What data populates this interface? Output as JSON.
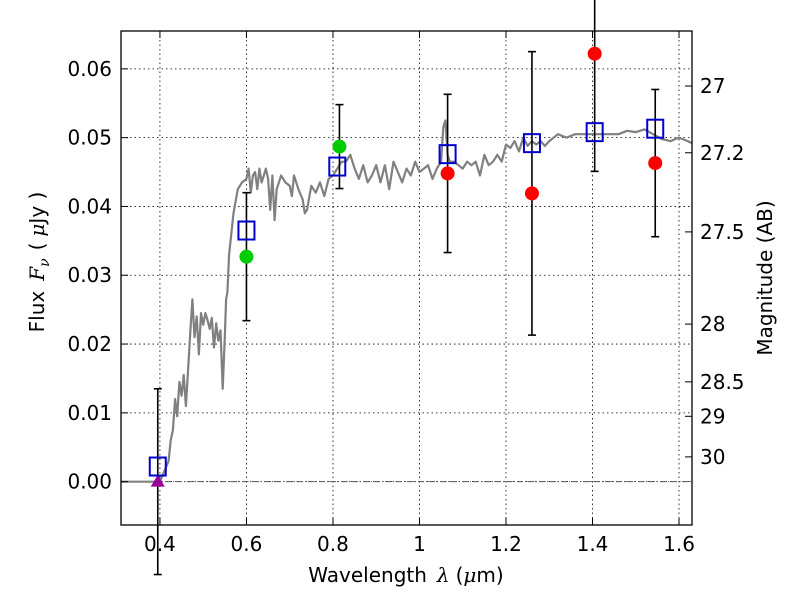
{
  "chart_data": {
    "type": "scatter",
    "xlabel_prefix": "Wavelength",
    "xlabel_symbol": "λ",
    "xlabel_unit_open": "(",
    "xlabel_unit_mu": "μ",
    "xlabel_unit_rest": "m)",
    "ylabel_prefix": "Flux",
    "ylabel_symbol": "F",
    "ylabel_sub": "ν",
    "ylabel_unit_open": "(",
    "ylabel_unit_mu": "μ",
    "ylabel_unit_rest": "Jy )",
    "y2label": "Magnitude (AB)",
    "xlim": [
      0.31,
      1.63
    ],
    "ylim": [
      -0.0063,
      0.0655
    ],
    "xticks": [
      {
        "value": 0.4,
        "label": "0.4"
      },
      {
        "value": 0.6,
        "label": "0.6"
      },
      {
        "value": 0.8,
        "label": "0.8"
      },
      {
        "value": 1.0,
        "label": "1"
      },
      {
        "value": 1.2,
        "label": "1.2"
      },
      {
        "value": 1.4,
        "label": "1.4"
      },
      {
        "value": 1.6,
        "label": "1.6"
      }
    ],
    "yticks": [
      {
        "value": 0.0,
        "label": "0.00"
      },
      {
        "value": 0.01,
        "label": "0.01"
      },
      {
        "value": 0.02,
        "label": "0.02"
      },
      {
        "value": 0.03,
        "label": "0.03"
      },
      {
        "value": 0.04,
        "label": "0.04"
      },
      {
        "value": 0.05,
        "label": "0.05"
      },
      {
        "value": 0.06,
        "label": "0.06"
      }
    ],
    "y2ticks": [
      {
        "flux": 0.0575,
        "label": "27"
      },
      {
        "flux": 0.0478,
        "label": "27.2"
      },
      {
        "flux": 0.0363,
        "label": "27.5"
      },
      {
        "flux": 0.0229,
        "label": "28"
      },
      {
        "flux": 0.0145,
        "label": "28.5"
      },
      {
        "flux": 0.0095,
        "label": "29"
      },
      {
        "flux": 0.0036,
        "label": "30"
      }
    ],
    "grid": true,
    "colors": {
      "model": "#808080",
      "model_points": "#0000cc",
      "observed": "#ff0000",
      "observed_alt": "#00cc00",
      "upper_limit": "#990099",
      "errorbar": "#000000",
      "zero_line": "#555555"
    },
    "series": [
      {
        "name": "model spectrum",
        "kind": "line",
        "points": [
          [
            0.31,
            0.0
          ],
          [
            0.4,
            0.0
          ],
          [
            0.41,
            0.0015
          ],
          [
            0.42,
            0.003
          ],
          [
            0.425,
            0.006
          ],
          [
            0.43,
            0.0075
          ],
          [
            0.435,
            0.012
          ],
          [
            0.44,
            0.0095
          ],
          [
            0.445,
            0.0145
          ],
          [
            0.45,
            0.0125
          ],
          [
            0.455,
            0.0155
          ],
          [
            0.46,
            0.011
          ],
          [
            0.465,
            0.016
          ],
          [
            0.47,
            0.0215
          ],
          [
            0.475,
            0.0265
          ],
          [
            0.48,
            0.021
          ],
          [
            0.485,
            0.024
          ],
          [
            0.49,
            0.0185
          ],
          [
            0.495,
            0.0245
          ],
          [
            0.5,
            0.0228
          ],
          [
            0.505,
            0.0245
          ],
          [
            0.51,
            0.0235
          ],
          [
            0.515,
            0.0222
          ],
          [
            0.52,
            0.0238
          ],
          [
            0.525,
            0.0195
          ],
          [
            0.53,
            0.023
          ],
          [
            0.535,
            0.0205
          ],
          [
            0.54,
            0.022
          ],
          [
            0.545,
            0.0135
          ],
          [
            0.55,
            0.021
          ],
          [
            0.553,
            0.0265
          ],
          [
            0.556,
            0.0275
          ],
          [
            0.56,
            0.033
          ],
          [
            0.57,
            0.039
          ],
          [
            0.58,
            0.0425
          ],
          [
            0.59,
            0.0435
          ],
          [
            0.6,
            0.044
          ],
          [
            0.605,
            0.0455
          ],
          [
            0.61,
            0.042
          ],
          [
            0.615,
            0.0445
          ],
          [
            0.62,
            0.045
          ],
          [
            0.625,
            0.0425
          ],
          [
            0.63,
            0.0455
          ],
          [
            0.635,
            0.0435
          ],
          [
            0.64,
            0.0445
          ],
          [
            0.645,
            0.0455
          ],
          [
            0.65,
            0.044
          ],
          [
            0.655,
            0.0395
          ],
          [
            0.66,
            0.0445
          ],
          [
            0.665,
            0.038
          ],
          [
            0.67,
            0.0425
          ],
          [
            0.68,
            0.0445
          ],
          [
            0.69,
            0.0435
          ],
          [
            0.7,
            0.043
          ],
          [
            0.705,
            0.0415
          ],
          [
            0.71,
            0.0445
          ],
          [
            0.72,
            0.0425
          ],
          [
            0.73,
            0.041
          ],
          [
            0.735,
            0.039
          ],
          [
            0.74,
            0.0395
          ],
          [
            0.75,
            0.043
          ],
          [
            0.76,
            0.042
          ],
          [
            0.77,
            0.0435
          ],
          [
            0.78,
            0.0415
          ],
          [
            0.79,
            0.044
          ],
          [
            0.8,
            0.0445
          ],
          [
            0.81,
            0.0455
          ],
          [
            0.82,
            0.0465
          ],
          [
            0.83,
            0.0465
          ],
          [
            0.84,
            0.0475
          ],
          [
            0.85,
            0.0455
          ],
          [
            0.86,
            0.044
          ],
          [
            0.87,
            0.046
          ],
          [
            0.88,
            0.0435
          ],
          [
            0.89,
            0.0445
          ],
          [
            0.9,
            0.046
          ],
          [
            0.91,
            0.0435
          ],
          [
            0.92,
            0.046
          ],
          [
            0.93,
            0.0425
          ],
          [
            0.94,
            0.0465
          ],
          [
            0.95,
            0.045
          ],
          [
            0.96,
            0.0435
          ],
          [
            0.97,
            0.0455
          ],
          [
            0.98,
            0.0445
          ],
          [
            0.99,
            0.0465
          ],
          [
            1.0,
            0.045
          ],
          [
            1.01,
            0.0455
          ],
          [
            1.02,
            0.046
          ],
          [
            1.03,
            0.044
          ],
          [
            1.04,
            0.0455
          ],
          [
            1.05,
            0.0465
          ],
          [
            1.055,
            0.0515
          ],
          [
            1.06,
            0.0525
          ],
          [
            1.065,
            0.0475
          ],
          [
            1.07,
            0.0465
          ],
          [
            1.08,
            0.0465
          ],
          [
            1.09,
            0.046
          ],
          [
            1.1,
            0.0455
          ],
          [
            1.11,
            0.0465
          ],
          [
            1.12,
            0.046
          ],
          [
            1.13,
            0.0465
          ],
          [
            1.14,
            0.0445
          ],
          [
            1.15,
            0.0475
          ],
          [
            1.16,
            0.046
          ],
          [
            1.17,
            0.0465
          ],
          [
            1.18,
            0.0475
          ],
          [
            1.19,
            0.0465
          ],
          [
            1.2,
            0.049
          ],
          [
            1.21,
            0.0485
          ],
          [
            1.22,
            0.0495
          ],
          [
            1.23,
            0.048
          ],
          [
            1.24,
            0.05
          ],
          [
            1.25,
            0.0488
          ],
          [
            1.26,
            0.0495
          ],
          [
            1.27,
            0.049
          ],
          [
            1.28,
            0.0495
          ],
          [
            1.29,
            0.0488
          ],
          [
            1.3,
            0.0495
          ],
          [
            1.32,
            0.0505
          ],
          [
            1.34,
            0.05
          ],
          [
            1.36,
            0.0505
          ],
          [
            1.38,
            0.0505
          ],
          [
            1.4,
            0.0505
          ],
          [
            1.42,
            0.0505
          ],
          [
            1.44,
            0.0505
          ],
          [
            1.46,
            0.0505
          ],
          [
            1.48,
            0.051
          ],
          [
            1.5,
            0.0508
          ],
          [
            1.52,
            0.0512
          ],
          [
            1.54,
            0.0505
          ],
          [
            1.56,
            0.0498
          ],
          [
            1.58,
            0.0495
          ],
          [
            1.6,
            0.05
          ],
          [
            1.62,
            0.0495
          ],
          [
            1.63,
            0.0492
          ]
        ]
      },
      {
        "name": "model band flux",
        "kind": "square",
        "points": [
          [
            0.395,
            0.0022
          ],
          [
            0.6,
            0.0365
          ],
          [
            0.81,
            0.0458
          ],
          [
            1.065,
            0.0476
          ],
          [
            1.26,
            0.0492
          ],
          [
            1.405,
            0.0508
          ],
          [
            1.545,
            0.0513
          ]
        ]
      },
      {
        "name": "observed flux",
        "kind": "circle",
        "points": [
          {
            "x": 0.6,
            "y": 0.0327,
            "err": 0.0093,
            "color": "#00cc00"
          },
          {
            "x": 0.815,
            "y": 0.0487,
            "err": 0.0061,
            "color": "#00cc00"
          },
          {
            "x": 1.065,
            "y": 0.0448,
            "err": 0.0115,
            "color": "#ff0000"
          },
          {
            "x": 1.26,
            "y": 0.0419,
            "err": 0.0206,
            "color": "#ff0000"
          },
          {
            "x": 1.405,
            "y": 0.0622,
            "err": 0.0171,
            "color": "#ff0000"
          },
          {
            "x": 1.545,
            "y": 0.0463,
            "err": 0.0107,
            "color": "#ff0000"
          }
        ]
      },
      {
        "name": "upper limit",
        "kind": "triangle",
        "points": [
          {
            "x": 0.395,
            "y": 0.0,
            "err": 0.0135,
            "color": "#990099"
          }
        ]
      }
    ]
  }
}
